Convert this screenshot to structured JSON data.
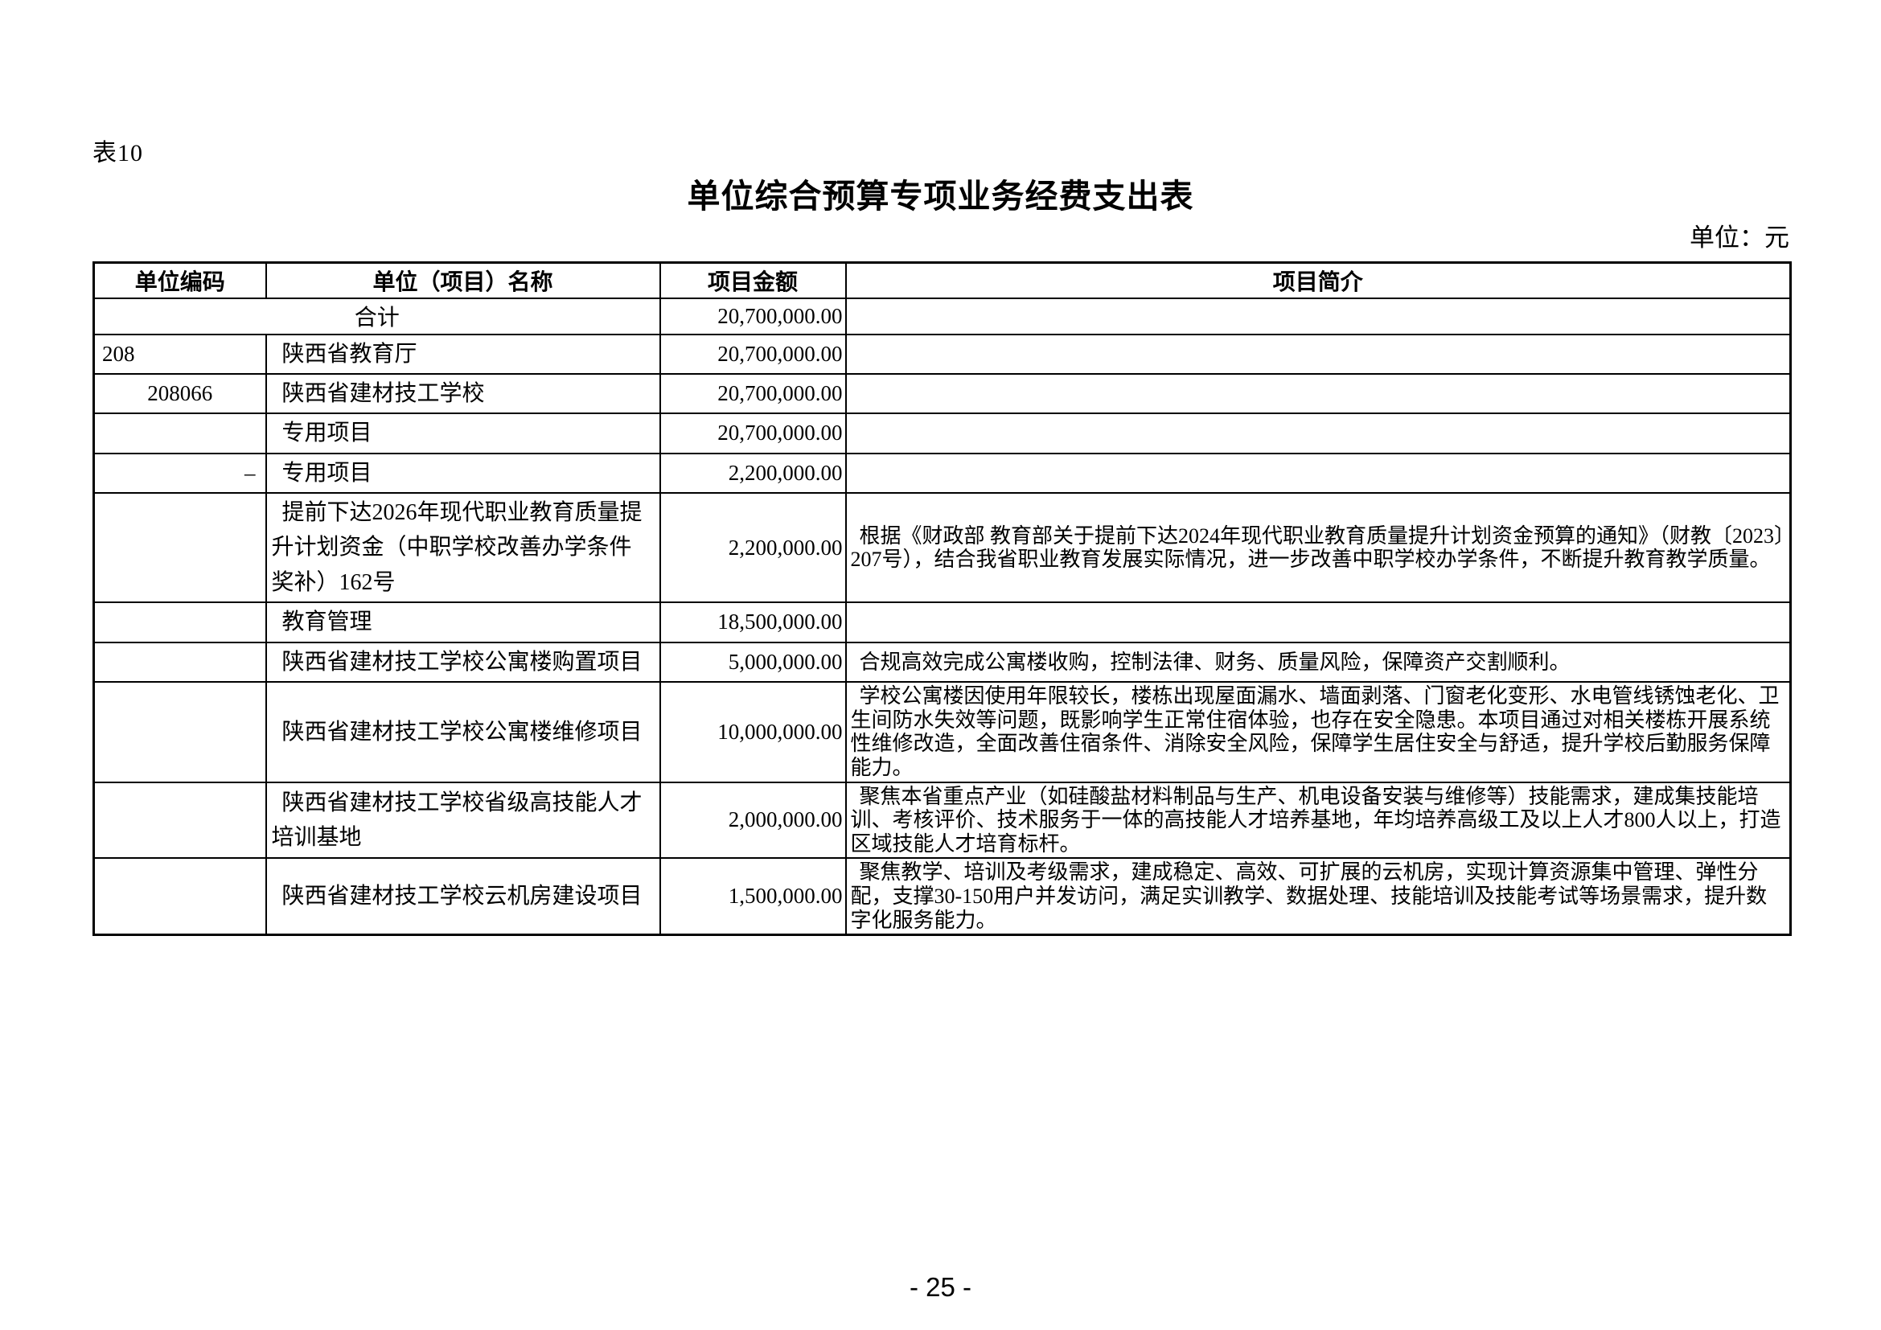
{
  "page": {
    "table_label": "表10",
    "title": "单位综合预算专项业务经费支出表",
    "unit_note": "单位：元",
    "page_number": "- 25 -"
  },
  "table": {
    "headers": [
      "单位编码",
      "单位（项目）名称",
      "项目金额",
      "项目简介"
    ],
    "rows": [
      {
        "merged": true,
        "code": "",
        "name": "合计",
        "amount": "20,700,000.00",
        "desc": ""
      },
      {
        "merged": false,
        "code": "208",
        "name": "陕西省教育厅",
        "amount": "20,700,000.00",
        "desc": ""
      },
      {
        "merged": false,
        "code": "208066",
        "name": "陕西省建材技工学校",
        "amount": "20,700,000.00",
        "desc": ""
      },
      {
        "merged": false,
        "code": "",
        "name": "专用项目",
        "amount": "20,700,000.00",
        "desc": ""
      },
      {
        "merged": false,
        "code": "–",
        "name": "专用项目",
        "amount": "2,200,000.00",
        "desc": ""
      },
      {
        "merged": false,
        "code": "",
        "name": "提前下达2026年现代职业教育质量提升计划资金（中职学校改善办学条件奖补）162号",
        "amount": "2,200,000.00",
        "desc": "根据《财政部 教育部关于提前下达2024年现代职业教育质量提升计划资金预算的通知》（财教〔2023〕207号），结合我省职业教育发展实际情况，进一步改善中职学校办学条件，不断提升教育教学质量。"
      },
      {
        "merged": false,
        "code": "",
        "name": "教育管理",
        "amount": "18,500,000.00",
        "desc": ""
      },
      {
        "merged": false,
        "code": "",
        "name": "陕西省建材技工学校公寓楼购置项目",
        "amount": "5,000,000.00",
        "desc": "合规高效完成公寓楼收购，控制法律、财务、质量风险，保障资产交割顺利。"
      },
      {
        "merged": false,
        "code": "",
        "name": "陕西省建材技工学校公寓楼维修项目",
        "amount": "10,000,000.00",
        "desc": "学校公寓楼因使用年限较长，楼栋出现屋面漏水、墙面剥落、门窗老化变形、水电管线锈蚀老化、卫生间防水失效等问题，既影响学生正常住宿体验，也存在安全隐患。本项目通过对相关楼栋开展系统性维修改造，全面改善住宿条件、消除安全风险，保障学生居住安全与舒适，提升学校后勤服务保障能力。"
      },
      {
        "merged": false,
        "code": "",
        "name": "陕西省建材技工学校省级高技能人才培训基地",
        "amount": "2,000,000.00",
        "desc": "聚焦本省重点产业（如硅酸盐材料制品与生产、机电设备安装与维修等）技能需求，建成集技能培训、考核评价、技术服务于一体的高技能人才培养基地，年均培养高级工及以上人才800人以上，打造区域技能人才培育标杆。"
      },
      {
        "merged": false,
        "code": "",
        "name": "陕西省建材技工学校云机房建设项目",
        "amount": "1,500,000.00",
        "desc": "聚焦教学、培训及考级需求，建成稳定、高效、可扩展的云机房，实现计算资源集中管理、弹性分配，支撑30-150用户并发访问，满足实训教学、数据处理、技能培训及技能考试等场景需求，提升数字化服务能力。"
      }
    ]
  }
}
